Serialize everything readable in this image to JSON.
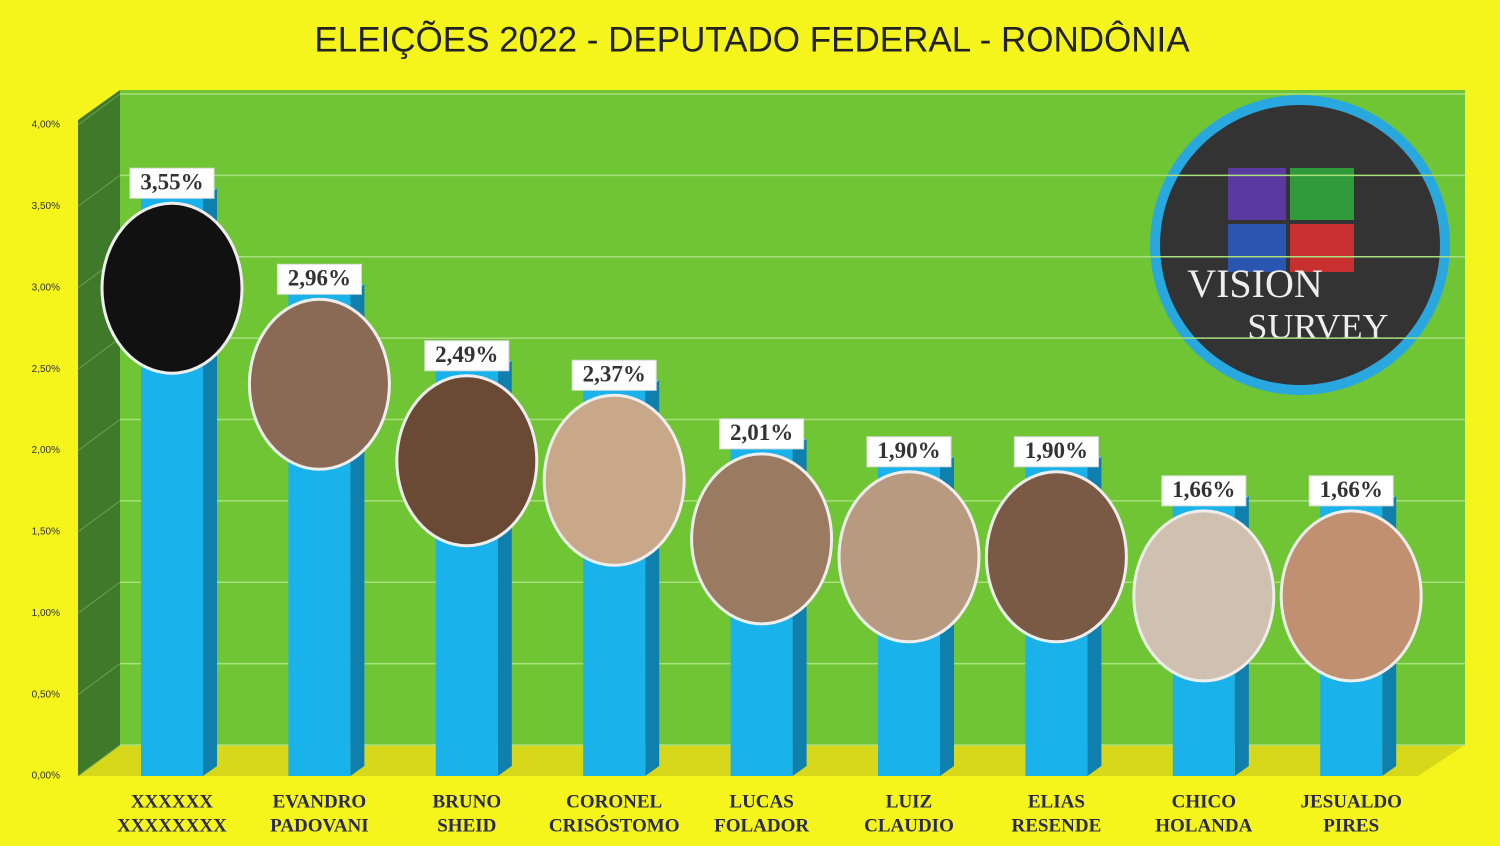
{
  "chart_data": {
    "type": "bar",
    "title": "ELEIÇÕES 2022 - DEPUTADO FEDERAL - RONDÔNIA",
    "categories": [
      [
        "XXXXXX",
        "XXXXXXXX"
      ],
      [
        "EVANDRO",
        "PADOVANI"
      ],
      [
        "BRUNO",
        "SHEID"
      ],
      [
        "CORONEL",
        "CRISÓSTOMO"
      ],
      [
        "LUCAS",
        "FOLADOR"
      ],
      [
        "LUIZ",
        "CLAUDIO"
      ],
      [
        "ELIAS",
        "RESENDE"
      ],
      [
        "CHICO",
        "HOLANDA"
      ],
      [
        "JESUALDO",
        "PIRES"
      ]
    ],
    "values": [
      3.55,
      2.96,
      2.49,
      2.37,
      2.01,
      1.9,
      1.9,
      1.66,
      1.66
    ],
    "value_labels": [
      "3,55%",
      "2,96%",
      "2,49%",
      "2,37%",
      "2,01%",
      "1,90%",
      "1,90%",
      "1,66%",
      "1,66%"
    ],
    "color": "#1ab2ea",
    "ylim": [
      0,
      4
    ],
    "yticks": [
      {
        "value": 0,
        "label": "0,00%"
      },
      {
        "value": 0.5,
        "label": "0,50%"
      },
      {
        "value": 1,
        "label": "1,00%"
      },
      {
        "value": 1.5,
        "label": "1,50%"
      },
      {
        "value": 2,
        "label": "2,00%"
      },
      {
        "value": 2.5,
        "label": "2,50%"
      },
      {
        "value": 3,
        "label": "3,00%"
      },
      {
        "value": 3.5,
        "label": "3,50%"
      },
      {
        "value": 4,
        "label": "4,00%"
      }
    ],
    "grid": true
  },
  "logo": {
    "line1": "VISION",
    "line2": "SURVEY"
  }
}
